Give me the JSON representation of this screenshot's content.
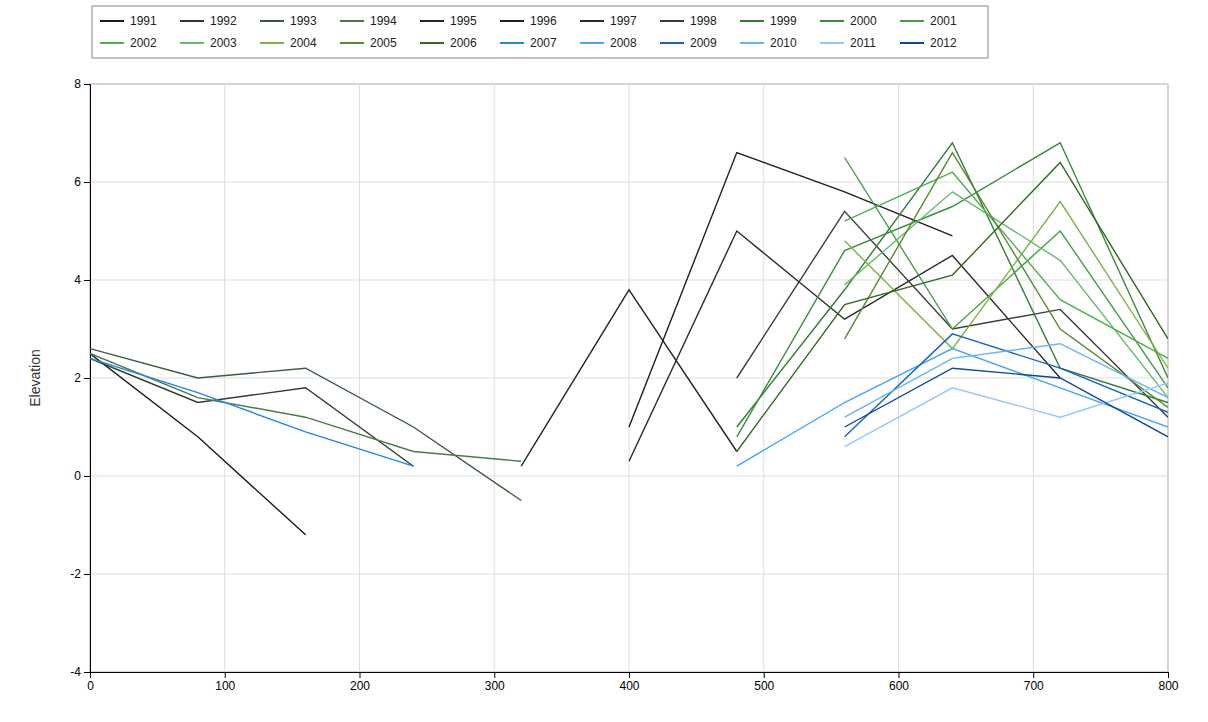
{
  "chart_data": {
    "type": "line",
    "y_label": "Elevation",
    "x": [
      0,
      80,
      160,
      240,
      320,
      400,
      480,
      560,
      640,
      720,
      800
    ],
    "xlim": [
      0,
      800
    ],
    "xticks": [
      0,
      100,
      200,
      300,
      400,
      500,
      600,
      700,
      800
    ],
    "ylim": [
      -4,
      8
    ],
    "yticks": [
      -4,
      -2,
      0,
      2,
      4,
      6,
      8
    ],
    "grid": true,
    "legend": "top",
    "series": [
      {
        "name": "1991",
        "color": "#1b1b1b",
        "values": [
          2.5,
          0.8,
          -1.2,
          null,
          null,
          null,
          null,
          null,
          null,
          null,
          null
        ]
      },
      {
        "name": "1992",
        "color": "#2e3b2e",
        "values": [
          2.4,
          1.5,
          1.8,
          0.2,
          null,
          null,
          null,
          null,
          null,
          null,
          null
        ]
      },
      {
        "name": "1993",
        "color": "#3a5a3a",
        "values": [
          2.6,
          2.0,
          2.2,
          1.0,
          -0.5,
          null,
          null,
          null,
          null,
          null,
          null
        ]
      },
      {
        "name": "1994",
        "color": "#4a7a4a",
        "values": [
          2.5,
          1.6,
          1.2,
          0.5,
          0.3,
          null,
          null,
          null,
          null,
          null,
          null
        ]
      },
      {
        "name": "1995",
        "color": "#222a22",
        "values": [
          null,
          null,
          null,
          null,
          0.2,
          3.8,
          0.5,
          null,
          null,
          null,
          null
        ]
      },
      {
        "name": "1996",
        "color": "#1f1f1f",
        "values": [
          null,
          null,
          null,
          null,
          null,
          1.0,
          6.6,
          5.8,
          4.9,
          null,
          null
        ]
      },
      {
        "name": "1997",
        "color": "#2b2b2b",
        "values": [
          null,
          null,
          null,
          null,
          null,
          0.3,
          5.0,
          3.2,
          4.5,
          2.0,
          null
        ]
      },
      {
        "name": "1998",
        "color": "#3c3c3c",
        "values": [
          null,
          null,
          null,
          null,
          null,
          null,
          2.0,
          5.4,
          3.0,
          3.4,
          1.2
        ]
      },
      {
        "name": "1999",
        "color": "#2e7d32",
        "values": [
          null,
          null,
          null,
          null,
          null,
          null,
          1.0,
          3.8,
          6.8,
          2.2,
          1.5
        ]
      },
      {
        "name": "2000",
        "color": "#388e3c",
        "values": [
          null,
          null,
          null,
          null,
          null,
          null,
          0.8,
          4.6,
          5.5,
          6.8,
          2.0
        ]
      },
      {
        "name": "2001",
        "color": "#43a047",
        "values": [
          null,
          null,
          null,
          null,
          null,
          null,
          null,
          6.5,
          3.0,
          5.0,
          1.8
        ]
      },
      {
        "name": "2002",
        "color": "#4caf50",
        "values": [
          null,
          null,
          null,
          null,
          null,
          null,
          null,
          5.2,
          6.2,
          3.6,
          2.4
        ]
      },
      {
        "name": "2003",
        "color": "#66bb6a",
        "values": [
          null,
          null,
          null,
          null,
          null,
          null,
          null,
          3.9,
          5.8,
          4.4,
          1.6
        ]
      },
      {
        "name": "2004",
        "color": "#7cb342",
        "values": [
          null,
          null,
          null,
          null,
          null,
          null,
          null,
          4.8,
          2.6,
          5.6,
          2.2
        ]
      },
      {
        "name": "2005",
        "color": "#558b2f",
        "values": [
          null,
          null,
          null,
          null,
          null,
          null,
          null,
          2.8,
          6.6,
          3.0,
          1.4
        ]
      },
      {
        "name": "2006",
        "color": "#33691e",
        "values": [
          null,
          null,
          null,
          null,
          null,
          null,
          0.5,
          3.5,
          4.1,
          6.4,
          2.8
        ]
      },
      {
        "name": "2007",
        "color": "#1e88e5",
        "values": [
          2.4,
          1.7,
          0.9,
          0.2,
          null,
          null,
          null,
          null,
          null,
          null,
          null
        ]
      },
      {
        "name": "2008",
        "color": "#42a5f5",
        "values": [
          null,
          null,
          null,
          null,
          null,
          null,
          0.2,
          1.5,
          2.6,
          1.8,
          1.0
        ]
      },
      {
        "name": "2009",
        "color": "#1565c0",
        "values": [
          null,
          null,
          null,
          null,
          null,
          null,
          null,
          0.8,
          2.9,
          2.2,
          1.3
        ]
      },
      {
        "name": "2010",
        "color": "#64b5f6",
        "values": [
          null,
          null,
          null,
          null,
          null,
          null,
          null,
          1.2,
          2.4,
          2.7,
          1.6
        ]
      },
      {
        "name": "2011",
        "color": "#90caf9",
        "values": [
          null,
          null,
          null,
          null,
          null,
          null,
          null,
          0.6,
          1.8,
          1.2,
          1.9
        ]
      },
      {
        "name": "2012",
        "color": "#0d47a1",
        "values": [
          null,
          null,
          null,
          null,
          null,
          null,
          null,
          1.0,
          2.2,
          2.0,
          0.8
        ]
      }
    ]
  }
}
